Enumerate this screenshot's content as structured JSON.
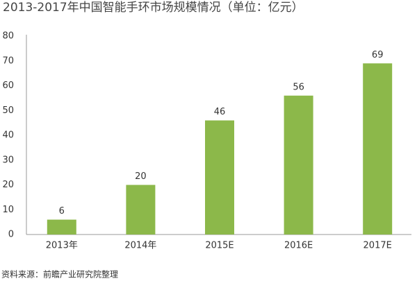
{
  "chart_data": {
    "type": "bar",
    "title": "2013-2017年中国智能手环市场规模情况（单位：亿元）",
    "source": "资料来源：前瞻产业研究院整理",
    "categories": [
      "2013年",
      "2014年",
      "2015E",
      "2016E",
      "2017E"
    ],
    "values": [
      6,
      20,
      46,
      56,
      69
    ],
    "color": "#8cb84a",
    "ylim": [
      0,
      80
    ],
    "yticks": [
      0,
      10,
      20,
      30,
      40,
      50,
      60,
      70,
      80
    ],
    "grid": false
  }
}
